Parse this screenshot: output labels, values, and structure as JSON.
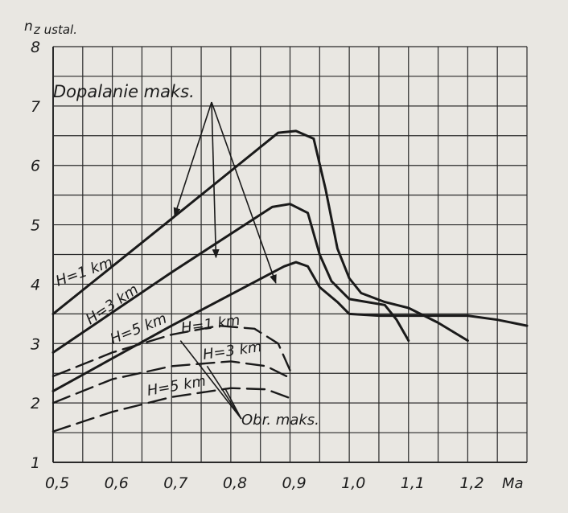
{
  "chart_data": {
    "type": "line",
    "ylabel_main": "n",
    "ylabel_sub": "z ustal.",
    "xlabel": "Ma",
    "xlim": [
      0.5,
      1.3
    ],
    "ylim": [
      1,
      8
    ],
    "x_ticks": [
      "0,5",
      "0,6",
      "0,7",
      "0,8",
      "0,9",
      "1,0",
      "1,1",
      "1,2"
    ],
    "y_ticks": [
      "1",
      "2",
      "3",
      "4",
      "5",
      "6",
      "7",
      "8"
    ],
    "grid": true,
    "annotations": {
      "afterburner": "Dopalanie maks.",
      "max_rpm": "Obr. maks."
    },
    "series": [
      {
        "name": "H=1 km",
        "group": "Dopalanie maks.",
        "style": "solid",
        "x": [
          0.5,
          0.7,
          0.88,
          0.91,
          0.94,
          0.96,
          0.98,
          1.0,
          1.02,
          1.06,
          1.1,
          1.15,
          1.2
        ],
        "y": [
          3.5,
          5.1,
          6.55,
          6.58,
          6.45,
          5.6,
          4.6,
          4.1,
          3.85,
          3.7,
          3.6,
          3.35,
          3.05
        ]
      },
      {
        "name": "H=3 km",
        "group": "Dopalanie maks.",
        "style": "solid",
        "x": [
          0.5,
          0.7,
          0.87,
          0.9,
          0.93,
          0.95,
          0.97,
          1.0,
          1.03,
          1.06,
          1.08,
          1.1
        ],
        "y": [
          2.85,
          4.2,
          5.3,
          5.35,
          5.2,
          4.5,
          4.05,
          3.75,
          3.7,
          3.65,
          3.4,
          3.05
        ]
      },
      {
        "name": "H=5 km",
        "group": "Dopalanie maks.",
        "style": "solid",
        "x": [
          0.5,
          0.7,
          0.89,
          0.91,
          0.93,
          0.95,
          0.98,
          1.0,
          1.05,
          1.1,
          1.2,
          1.25,
          1.3
        ],
        "y": [
          2.2,
          3.3,
          4.3,
          4.37,
          4.3,
          3.95,
          3.7,
          3.5,
          3.47,
          3.47,
          3.47,
          3.4,
          3.3
        ]
      },
      {
        "name": "H=1 km",
        "group": "Obr. maks.",
        "style": "dashed",
        "x": [
          0.5,
          0.6,
          0.7,
          0.78,
          0.84,
          0.88,
          0.9
        ],
        "y": [
          2.45,
          2.85,
          3.15,
          3.3,
          3.25,
          3.0,
          2.55
        ]
      },
      {
        "name": "H=3 km",
        "group": "Obr. maks.",
        "style": "dashed",
        "x": [
          0.5,
          0.6,
          0.7,
          0.8,
          0.86,
          0.9
        ],
        "y": [
          2.0,
          2.4,
          2.62,
          2.7,
          2.62,
          2.42
        ]
      },
      {
        "name": "H=5 km",
        "group": "Obr. maks.",
        "style": "dashed",
        "x": [
          0.5,
          0.6,
          0.7,
          0.8,
          0.86,
          0.9
        ],
        "y": [
          1.52,
          1.85,
          2.1,
          2.25,
          2.23,
          2.08
        ]
      }
    ]
  }
}
